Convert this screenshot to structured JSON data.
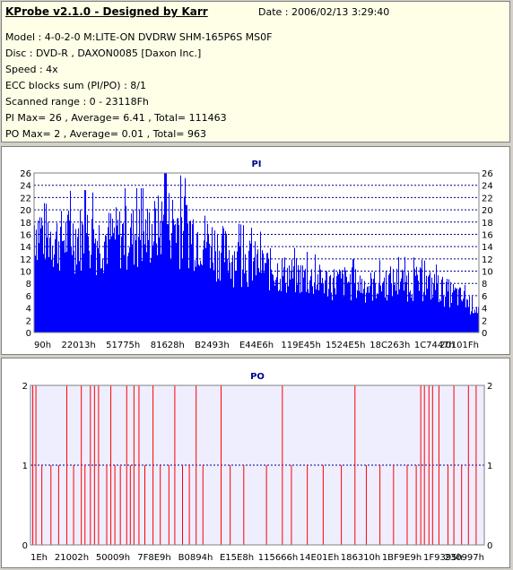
{
  "info": {
    "title": "KProbe v2.1.0 - Designed by Karr",
    "date": "Date : 2006/02/13 3:29:40",
    "lines": [
      "Model : 4-0-2-0 M:LITE-ON DVDRW SHM-165P6S MS0F",
      "Disc : DVD-R , DAXON0085 [Daxon Inc.]",
      "Speed : 4x",
      "ECC blocks sum (PI/PO) : 8/1",
      "Scanned range : 0 - 23118Fh",
      "PI Max= 26 , Average= 6.41 , Total= 111463",
      "PO Max= 2 , Average= 0.01 , Total= 963"
    ]
  },
  "colors": {
    "pi": "#0000ff",
    "po": "#ff0000",
    "grid": "#00008b",
    "plot_bg": "#eeeeff"
  },
  "chart_data": [
    {
      "type": "bar",
      "title": "PI",
      "ylim": [
        0,
        26
      ],
      "yticks": [
        0,
        2,
        4,
        6,
        8,
        10,
        12,
        14,
        16,
        18,
        20,
        22,
        24,
        26
      ],
      "x_tick_labels": [
        "90h",
        "22013h",
        "51775h",
        "81628h",
        "B2493h",
        "E44E6h",
        "119E45h",
        "1524E5h",
        "18C263h",
        "1C7447h",
        "20101Fh"
      ],
      "grid": true,
      "envelope": [
        {
          "x": 0.0,
          "y": 23
        },
        {
          "x": 0.05,
          "y": 20
        },
        {
          "x": 0.1,
          "y": 21
        },
        {
          "x": 0.15,
          "y": 20
        },
        {
          "x": 0.2,
          "y": 21
        },
        {
          "x": 0.25,
          "y": 21
        },
        {
          "x": 0.3,
          "y": 24
        },
        {
          "x": 0.35,
          "y": 22
        },
        {
          "x": 0.4,
          "y": 19
        },
        {
          "x": 0.45,
          "y": 16
        },
        {
          "x": 0.5,
          "y": 15
        },
        {
          "x": 0.55,
          "y": 13
        },
        {
          "x": 0.6,
          "y": 12
        },
        {
          "x": 0.65,
          "y": 11
        },
        {
          "x": 0.7,
          "y": 11
        },
        {
          "x": 0.75,
          "y": 10
        },
        {
          "x": 0.8,
          "y": 11
        },
        {
          "x": 0.85,
          "y": 11
        },
        {
          "x": 0.9,
          "y": 10
        },
        {
          "x": 0.95,
          "y": 8
        },
        {
          "x": 1.0,
          "y": 5
        }
      ],
      "peak": 26
    },
    {
      "type": "bar",
      "title": "PO",
      "ylim": [
        0,
        2
      ],
      "yticks": [
        0,
        1,
        2
      ],
      "x_tick_labels": [
        "1Eh",
        "21002h",
        "50009h",
        "7F8E9h",
        "B0894h",
        "E15E8h",
        "115666h",
        "14E01Eh",
        "186310h",
        "1BF9E9h",
        "1F9395h",
        "230997h"
      ],
      "grid": true,
      "events": [
        {
          "x": 0.005,
          "y": 2
        },
        {
          "x": 0.012,
          "y": 2
        },
        {
          "x": 0.025,
          "y": 1
        },
        {
          "x": 0.045,
          "y": 1
        },
        {
          "x": 0.062,
          "y": 1
        },
        {
          "x": 0.08,
          "y": 2
        },
        {
          "x": 0.095,
          "y": 1
        },
        {
          "x": 0.112,
          "y": 2
        },
        {
          "x": 0.12,
          "y": 1
        },
        {
          "x": 0.132,
          "y": 2
        },
        {
          "x": 0.141,
          "y": 2
        },
        {
          "x": 0.15,
          "y": 2
        },
        {
          "x": 0.168,
          "y": 1
        },
        {
          "x": 0.177,
          "y": 2
        },
        {
          "x": 0.186,
          "y": 1
        },
        {
          "x": 0.198,
          "y": 1
        },
        {
          "x": 0.212,
          "y": 2
        },
        {
          "x": 0.22,
          "y": 1
        },
        {
          "x": 0.228,
          "y": 2
        },
        {
          "x": 0.239,
          "y": 2
        },
        {
          "x": 0.252,
          "y": 1
        },
        {
          "x": 0.27,
          "y": 2
        },
        {
          "x": 0.286,
          "y": 1
        },
        {
          "x": 0.305,
          "y": 1
        },
        {
          "x": 0.318,
          "y": 2
        },
        {
          "x": 0.335,
          "y": 1
        },
        {
          "x": 0.35,
          "y": 1
        },
        {
          "x": 0.365,
          "y": 2
        },
        {
          "x": 0.38,
          "y": 1
        },
        {
          "x": 0.42,
          "y": 2
        },
        {
          "x": 0.44,
          "y": 1
        },
        {
          "x": 0.47,
          "y": 1
        },
        {
          "x": 0.52,
          "y": 1
        },
        {
          "x": 0.555,
          "y": 2
        },
        {
          "x": 0.575,
          "y": 1
        },
        {
          "x": 0.61,
          "y": 1
        },
        {
          "x": 0.645,
          "y": 1
        },
        {
          "x": 0.685,
          "y": 1
        },
        {
          "x": 0.715,
          "y": 2
        },
        {
          "x": 0.74,
          "y": 1
        },
        {
          "x": 0.77,
          "y": 1
        },
        {
          "x": 0.8,
          "y": 1
        },
        {
          "x": 0.83,
          "y": 1
        },
        {
          "x": 0.85,
          "y": 1
        },
        {
          "x": 0.86,
          "y": 2
        },
        {
          "x": 0.868,
          "y": 2
        },
        {
          "x": 0.878,
          "y": 2
        },
        {
          "x": 0.886,
          "y": 2
        },
        {
          "x": 0.9,
          "y": 2
        },
        {
          "x": 0.92,
          "y": 1
        },
        {
          "x": 0.933,
          "y": 2
        },
        {
          "x": 0.95,
          "y": 1
        },
        {
          "x": 0.965,
          "y": 2
        },
        {
          "x": 0.982,
          "y": 2
        }
      ]
    }
  ]
}
